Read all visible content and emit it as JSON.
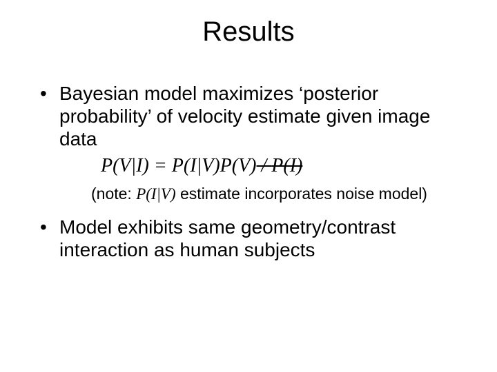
{
  "title": "Results",
  "bullets": {
    "b1": "Bayesian model maximizes ‘posterior probability’ of velocity estimate given image data",
    "b2": "Model exhibits same geometry/contrast interaction as human subjects"
  },
  "formula": {
    "lhs": "P(V|I) = P(I|V)P(V)",
    "slash": " / ",
    "rhs": "P(I)"
  },
  "note": {
    "pre": "(note: ",
    "piv": "P(I|V)",
    "post": " estimate incorporates noise model)"
  },
  "style": {
    "background_color": "#ffffff",
    "text_color": "#000000",
    "title_fontsize": 40,
    "body_fontsize": 28,
    "note_fontsize": 23,
    "formula_font": "Times New Roman",
    "body_font": "Arial"
  }
}
